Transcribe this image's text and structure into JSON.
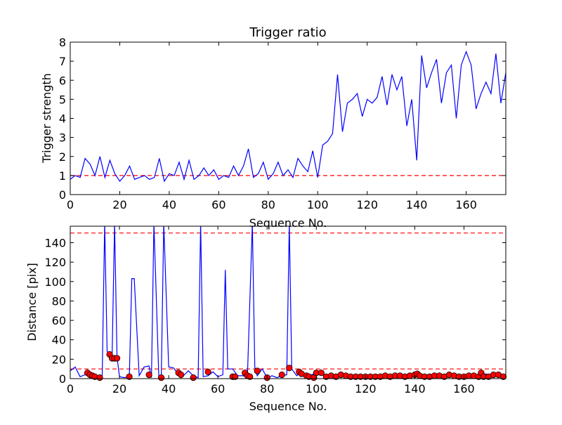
{
  "chart_data": [
    {
      "type": "line",
      "title": "Trigger ratio",
      "xlabel": "Sequence No.",
      "ylabel": "Trigger strength",
      "xlim": [
        0,
        176
      ],
      "ylim": [
        0,
        8
      ],
      "xticks": [
        "0",
        "20",
        "40",
        "60",
        "80",
        "100",
        "120",
        "140",
        "160"
      ],
      "yticks": [
        "0",
        "1",
        "2",
        "3",
        "4",
        "5",
        "6",
        "7",
        "8"
      ],
      "threshold": 1.0,
      "colors": {
        "series": "#0000ff",
        "threshold": "#ff0000"
      },
      "series": [
        {
          "x": [
            0,
            2,
            4,
            6,
            8,
            10,
            12,
            14,
            16,
            18,
            20,
            22,
            24,
            26,
            28,
            30,
            32,
            34,
            36,
            38,
            40,
            42,
            44,
            46,
            48,
            50,
            52,
            54,
            56,
            58,
            60,
            62,
            64,
            66,
            68,
            70,
            72,
            74,
            76,
            78,
            80,
            82,
            84,
            86,
            88,
            90,
            92,
            94,
            96,
            98,
            100,
            102,
            104,
            106,
            108,
            110,
            112,
            114,
            116,
            118,
            120,
            122,
            124,
            126,
            128,
            130,
            132,
            134,
            136,
            138,
            140,
            142,
            144,
            146,
            148,
            150,
            152,
            154,
            156,
            158,
            160,
            162,
            164,
            166,
            168,
            170,
            172,
            174,
            176
          ],
          "y": [
            0.8,
            1.0,
            0.9,
            1.9,
            1.6,
            1.0,
            2.0,
            0.9,
            1.8,
            1.1,
            0.7,
            1.0,
            1.5,
            0.8,
            0.9,
            1.0,
            0.8,
            0.9,
            1.9,
            0.7,
            1.1,
            1.0,
            1.7,
            0.8,
            1.8,
            0.8,
            1.0,
            1.4,
            1.0,
            1.3,
            0.8,
            1.0,
            0.9,
            1.5,
            1.0,
            1.5,
            2.4,
            0.9,
            1.1,
            1.7,
            0.8,
            1.1,
            1.7,
            1.0,
            1.3,
            0.9,
            1.9,
            1.5,
            1.2,
            2.3,
            0.9,
            2.6,
            2.8,
            3.2,
            6.3,
            3.3,
            4.8,
            5.0,
            5.3,
            4.1,
            5.0,
            4.8,
            5.1,
            6.2,
            4.7,
            6.3,
            5.5,
            6.2,
            3.6,
            5.0,
            1.8,
            7.3,
            5.6,
            6.4,
            7.1,
            4.8,
            6.4,
            6.8,
            4.0,
            6.8,
            7.5,
            6.8,
            4.5,
            5.3,
            5.9,
            5.3,
            7.4,
            4.8,
            6.4
          ]
        }
      ]
    },
    {
      "type": "line",
      "title": "",
      "xlabel": "Sequence No.",
      "ylabel": "Distance [pix]",
      "xlim": [
        0,
        177
      ],
      "ylim": [
        0,
        157
      ],
      "xticks": [
        "0",
        "20",
        "40",
        "60",
        "80",
        "100",
        "120",
        "140",
        "160"
      ],
      "yticks": [
        "0",
        "20",
        "40",
        "60",
        "80",
        "100",
        "120",
        "140"
      ],
      "thresholds": [
        150,
        10
      ],
      "colors": {
        "series": "#0000ff",
        "markers": "#ff0000",
        "threshold": "#ff0000"
      },
      "series": [
        {
          "x": [
            0,
            2,
            4,
            6,
            8,
            10,
            12,
            13,
            14,
            15,
            16,
            17,
            18,
            19,
            20,
            22,
            24,
            25,
            26,
            28,
            30,
            32,
            33,
            34,
            36,
            37,
            38,
            40,
            42,
            44,
            46,
            48,
            50,
            52,
            53,
            54,
            56,
            58,
            60,
            62,
            63,
            64,
            66,
            68,
            70,
            72,
            74,
            75,
            76,
            78,
            80,
            82,
            84,
            86,
            88,
            89,
            90,
            92,
            94,
            96,
            98,
            100,
            102,
            104,
            106,
            108,
            110,
            112,
            114,
            116,
            118,
            120,
            124,
            128,
            132,
            136,
            140,
            144,
            148,
            152,
            156,
            160,
            164,
            168,
            172,
            176
          ],
          "y": [
            8,
            12,
            2,
            4,
            7,
            2,
            1,
            3,
            160,
            28,
            25,
            20,
            160,
            22,
            2,
            1,
            2,
            103,
            103,
            3,
            12,
            13,
            1,
            160,
            1,
            2,
            160,
            12,
            11,
            4,
            3,
            8,
            3,
            1,
            160,
            2,
            3,
            7,
            2,
            4,
            112,
            10,
            10,
            3,
            3,
            2,
            160,
            12,
            3,
            10,
            1,
            3,
            1,
            3,
            4,
            160,
            10,
            3,
            7,
            2,
            4,
            6,
            5,
            3,
            2,
            2,
            3,
            4,
            2,
            2,
            3,
            3,
            2,
            3,
            3,
            2,
            2,
            4,
            3,
            3,
            2,
            3,
            3,
            5,
            4,
            2
          ]
        }
      ],
      "markers": {
        "x": [
          7,
          8,
          9,
          10,
          12,
          16,
          17,
          18,
          19,
          24,
          32,
          37,
          44,
          45,
          50,
          56,
          66,
          67,
          71,
          72,
          73,
          76,
          80,
          86,
          89,
          93,
          94,
          96,
          97,
          99,
          100,
          102,
          104,
          106,
          108,
          110,
          112,
          114,
          116,
          118,
          120,
          122,
          124,
          126,
          128,
          130,
          132,
          134,
          136,
          138,
          140,
          141,
          142,
          144,
          146,
          148,
          150,
          152,
          154,
          156,
          158,
          160,
          162,
          164,
          166,
          167,
          168,
          170,
          172,
          174,
          176
        ],
        "y": [
          6,
          4,
          3,
          2,
          1,
          25,
          21,
          21,
          21,
          2,
          4,
          1,
          6,
          4,
          1,
          7,
          2,
          2,
          6,
          3,
          2,
          8,
          1,
          4,
          11,
          7,
          5,
          3,
          2,
          1,
          6,
          6,
          2,
          3,
          2,
          4,
          3,
          2,
          2,
          2,
          2,
          2,
          2,
          2,
          3,
          2,
          3,
          3,
          2,
          3,
          4,
          5,
          3,
          2,
          2,
          3,
          3,
          2,
          4,
          3,
          2,
          2,
          3,
          3,
          2,
          6,
          2,
          2,
          4,
          4,
          2
        ]
      }
    }
  ]
}
